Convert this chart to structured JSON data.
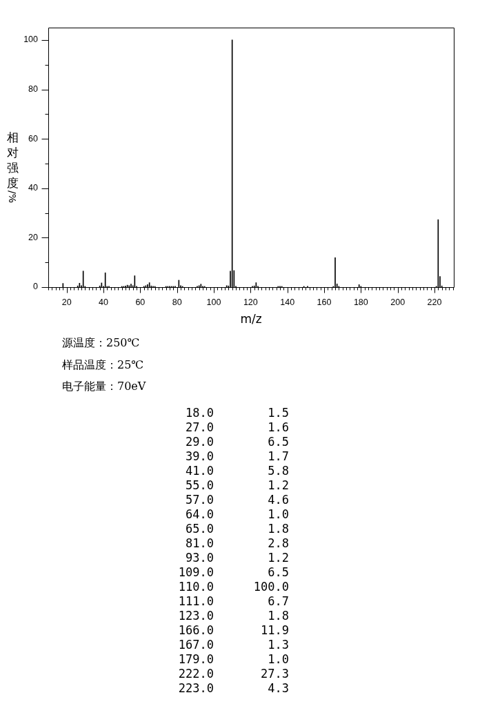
{
  "chart_data": {
    "type": "bar",
    "xlabel": "m/z",
    "ylabel": "相对强度/%",
    "annotations": [
      "源温度：250℃",
      "样品温度：25℃",
      "电子能量：70eV",
      "18.0",
      "1.5",
      "27.0",
      "1.6",
      "29.0",
      "6.5",
      "39.0",
      "1.7",
      "41.0",
      "5.8",
      "55.0",
      "1.2",
      "57.0",
      "4.6",
      "64.0",
      "1.0",
      "65.0",
      "1.8",
      "81.0",
      "2.8",
      "93.0",
      "1.2",
      "109.0",
      "6.5",
      "110.0",
      "100.0",
      "111.0",
      "6.7",
      "123.0",
      "1.8",
      "166.0",
      "11.9",
      "167.0",
      "1.3",
      "179.0",
      "1.0",
      "222.0",
      "27.3",
      "223.0",
      "4.3"
    ],
    "color": "#000000",
    "x": [
      18,
      26,
      27,
      28,
      29,
      30,
      38,
      39,
      40,
      41,
      42,
      43,
      50,
      51,
      52,
      53,
      54,
      55,
      56,
      57,
      58,
      62,
      63,
      64,
      65,
      66,
      67,
      68,
      74,
      75,
      76,
      77,
      78,
      79,
      81,
      82,
      83,
      91,
      92,
      93,
      94,
      95,
      107,
      108,
      109,
      110,
      111,
      112,
      121,
      122,
      123,
      124,
      135,
      136,
      137,
      149,
      151,
      165,
      166,
      167,
      168,
      179,
      180,
      221,
      222,
      223,
      224
    ],
    "values": [
      1.5,
      0.5,
      1.6,
      0.6,
      6.5,
      0.3,
      0.5,
      1.7,
      0.3,
      5.8,
      0.3,
      0.3,
      0.3,
      0.3,
      0.5,
      0.8,
      0.6,
      1.2,
      0.6,
      4.6,
      0.3,
      0.3,
      0.6,
      1.0,
      1.8,
      0.5,
      0.3,
      0.3,
      0.3,
      0.3,
      0.3,
      0.3,
      0.3,
      0.3,
      2.8,
      0.6,
      0.3,
      0.3,
      0.6,
      1.2,
      0.3,
      0.3,
      0.6,
      0.5,
      6.5,
      100,
      6.7,
      0.3,
      0.3,
      0.5,
      1.8,
      0.3,
      0.3,
      0.3,
      0.3,
      0.3,
      0.3,
      0.3,
      11.9,
      1.3,
      0.3,
      1.0,
      0.3,
      0.3,
      27.3,
      4.3,
      0.5
    ],
    "xlim": [
      10,
      230.5
    ],
    "xticks": [
      {
        "value": 10,
        "label": null
      },
      {
        "value": 12,
        "label": null
      },
      {
        "value": 14,
        "label": null
      },
      {
        "value": 16,
        "label": null
      },
      {
        "value": 18,
        "label": null
      },
      20,
      {
        "value": 22,
        "label": null
      },
      {
        "value": 24,
        "label": null
      },
      {
        "value": 26,
        "label": null
      },
      {
        "value": 28,
        "label": null
      },
      {
        "value": 30,
        "label": null
      },
      {
        "value": 32,
        "label": null
      },
      {
        "value": 34,
        "label": null
      },
      {
        "value": 36,
        "label": null
      },
      {
        "value": 38,
        "label": null
      },
      40,
      {
        "value": 42,
        "label": null
      },
      {
        "value": 44,
        "label": null
      },
      {
        "value": 46,
        "label": null
      },
      {
        "value": 48,
        "label": null
      },
      {
        "value": 50,
        "label": null
      },
      {
        "value": 52,
        "label": null
      },
      {
        "value": 54,
        "label": null
      },
      {
        "value": 56,
        "label": null
      },
      {
        "value": 58,
        "label": null
      },
      60,
      {
        "value": 62,
        "label": null
      },
      {
        "value": 64,
        "label": null
      },
      {
        "value": 66,
        "label": null
      },
      {
        "value": 68,
        "label": null
      },
      {
        "value": 70,
        "label": null
      },
      {
        "value": 72,
        "label": null
      },
      {
        "value": 74,
        "label": null
      },
      {
        "value": 76,
        "label": null
      },
      {
        "value": 78,
        "label": null
      },
      80,
      {
        "value": 82,
        "label": null
      },
      {
        "value": 84,
        "label": null
      },
      {
        "value": 86,
        "label": null
      },
      {
        "value": 88,
        "label": null
      },
      {
        "value": 90,
        "label": null
      },
      {
        "value": 92,
        "label": null
      },
      {
        "value": 94,
        "label": null
      },
      {
        "value": 96,
        "label": null
      },
      {
        "value": 98,
        "label": null
      },
      100,
      {
        "value": 102,
        "label": null
      },
      {
        "value": 104,
        "label": null
      },
      {
        "value": 106,
        "label": null
      },
      {
        "value": 108,
        "label": null
      },
      {
        "value": 110,
        "label": null
      },
      {
        "value": 112,
        "label": null
      },
      {
        "value": 114,
        "label": null
      },
      {
        "value": 116,
        "label": null
      },
      {
        "value": 118,
        "label": null
      },
      120,
      {
        "value": 122,
        "label": null
      },
      {
        "value": 124,
        "label": null
      },
      {
        "value": 126,
        "label": null
      },
      {
        "value": 128,
        "label": null
      },
      {
        "value": 130,
        "label": null
      },
      {
        "value": 132,
        "label": null
      },
      {
        "value": 134,
        "label": null
      },
      {
        "value": 136,
        "label": null
      },
      {
        "value": 138,
        "label": null
      },
      140,
      {
        "value": 142,
        "label": null
      },
      {
        "value": 144,
        "label": null
      },
      {
        "value": 146,
        "label": null
      },
      {
        "value": 148,
        "label": null
      },
      {
        "value": 150,
        "label": null
      },
      {
        "value": 152,
        "label": null
      },
      {
        "value": 154,
        "label": null
      },
      {
        "value": 156,
        "label": null
      },
      {
        "value": 158,
        "label": null
      },
      160,
      {
        "value": 162,
        "label": null
      },
      {
        "value": 164,
        "label": null
      },
      {
        "value": 166,
        "label": null
      },
      {
        "value": 168,
        "label": null
      },
      {
        "value": 170,
        "label": null
      },
      {
        "value": 172,
        "label": null
      },
      {
        "value": 174,
        "label": null
      },
      {
        "value": 176,
        "label": null
      },
      {
        "value": 178,
        "label": null
      },
      180,
      {
        "value": 182,
        "label": null
      },
      {
        "value": 184,
        "label": null
      },
      {
        "value": 186,
        "label": null
      },
      {
        "value": 188,
        "label": null
      },
      {
        "value": 190,
        "label": null
      },
      {
        "value": 192,
        "label": null
      },
      {
        "value": 194,
        "label": null
      },
      {
        "value": 196,
        "label": null
      },
      {
        "value": 198,
        "label": null
      },
      200,
      {
        "value": 202,
        "label": null
      },
      {
        "value": 204,
        "label": null
      },
      {
        "value": 206,
        "label": null
      },
      {
        "value": 208,
        "label": null
      },
      {
        "value": 210,
        "label": null
      },
      {
        "value": 212,
        "label": null
      },
      {
        "value": 214,
        "label": null
      },
      {
        "value": 216,
        "label": null
      },
      {
        "value": 218,
        "label": null
      },
      220,
      {
        "value": 222,
        "label": null
      },
      {
        "value": 224,
        "label": null
      },
      {
        "value": 226,
        "label": null
      },
      {
        "value": 228,
        "label": null
      },
      {
        "value": 230,
        "label": null
      }
    ],
    "ylim": [
      0,
      105
    ],
    "yticks": [
      0,
      {
        "value": 10,
        "label": null
      },
      20,
      {
        "value": 30,
        "label": null
      },
      40,
      {
        "value": 50,
        "label": null
      },
      60,
      {
        "value": 70,
        "label": null
      },
      80,
      {
        "value": 90,
        "label": null
      },
      100
    ]
  }
}
